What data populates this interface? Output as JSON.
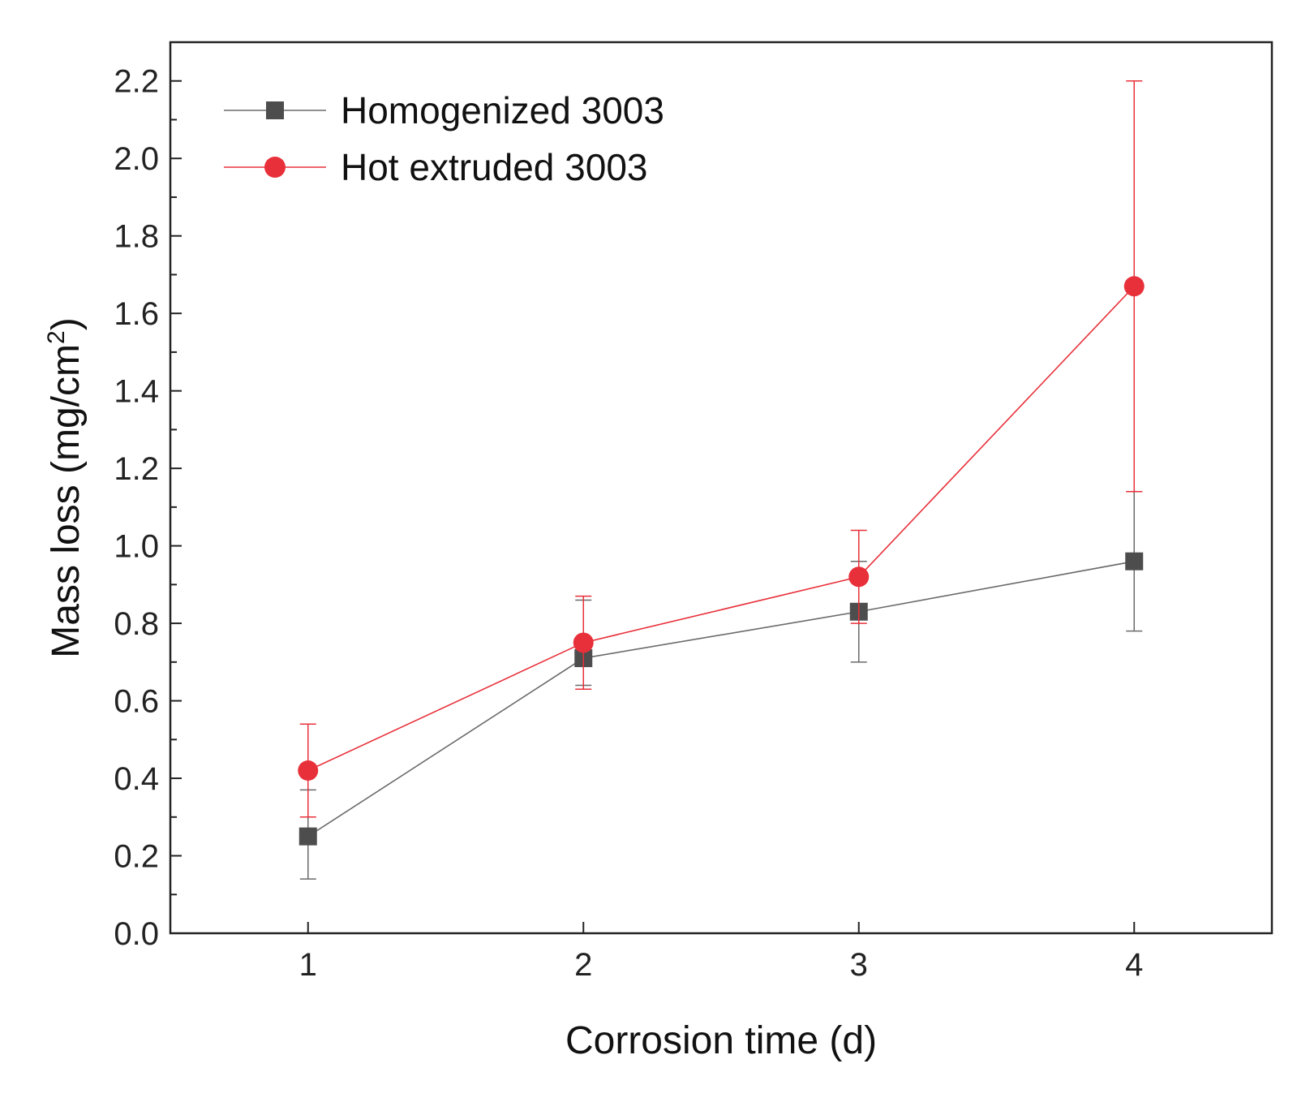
{
  "chart_data": {
    "type": "line",
    "title": "",
    "xlabel": "Corrosion time (d)",
    "ylabel": "Mass loss (mg/cm",
    "ylabel_superscript": "2",
    "ylabel_suffix": ")",
    "x": [
      1,
      2,
      3,
      4
    ],
    "x_ticks": [
      "1",
      "2",
      "3",
      "4"
    ],
    "xlim": [
      0.5,
      4.5
    ],
    "ylim": [
      0.0,
      2.3
    ],
    "y_ticks": [
      "0.0",
      "0.2",
      "0.4",
      "0.6",
      "0.8",
      "1.0",
      "1.2",
      "1.4",
      "1.6",
      "1.8",
      "2.0",
      "2.2"
    ],
    "y_tick_values": [
      0.0,
      0.2,
      0.4,
      0.6,
      0.8,
      1.0,
      1.2,
      1.4,
      1.6,
      1.8,
      2.0,
      2.2
    ],
    "grid": false,
    "legend_position": "top-left",
    "series": [
      {
        "name": "Homogenized 3003",
        "marker": "square",
        "color": "#4d4d4d",
        "line_color": "#6a6a6a",
        "values": [
          0.25,
          0.71,
          0.83,
          0.96
        ],
        "error_low": [
          0.14,
          0.64,
          0.7,
          0.78
        ],
        "error_high": [
          0.37,
          0.86,
          0.96,
          1.14
        ]
      },
      {
        "name": "Hot extruded 3003",
        "marker": "circle",
        "color": "#e8303a",
        "line_color": "#e8303a",
        "values": [
          0.42,
          0.75,
          0.92,
          1.67
        ],
        "error_low": [
          0.3,
          0.63,
          0.8,
          1.14
        ],
        "error_high": [
          0.54,
          0.87,
          1.04,
          2.2
        ]
      }
    ]
  }
}
